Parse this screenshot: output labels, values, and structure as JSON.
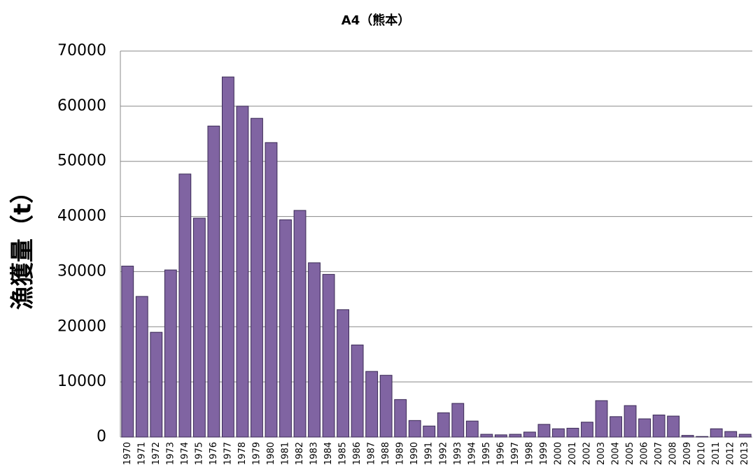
{
  "chart_data": {
    "type": "bar",
    "title": "A4（熊本）",
    "y_label": "漁獲量（t）",
    "categories": [
      "1970",
      "1971",
      "1972",
      "1973",
      "1974",
      "1975",
      "1976",
      "1977",
      "1978",
      "1979",
      "1980",
      "1981",
      "1982",
      "1983",
      "1984",
      "1985",
      "1986",
      "1987",
      "1988",
      "1989",
      "1990",
      "1991",
      "1992",
      "1993",
      "1994",
      "1995",
      "1996",
      "1997",
      "1998",
      "1999",
      "2000",
      "2001",
      "2002",
      "2003",
      "2004",
      "2005",
      "2006",
      "2007",
      "2008",
      "2009",
      "2010",
      "2011",
      "2012",
      "2013"
    ],
    "values": [
      31000,
      25500,
      19000,
      30300,
      47700,
      39700,
      56400,
      65300,
      60000,
      57800,
      53400,
      39400,
      41100,
      31600,
      29500,
      23100,
      16700,
      11900,
      11200,
      6800,
      3000,
      2000,
      4400,
      6100,
      2900,
      500,
      400,
      500,
      900,
      2300,
      1500,
      1600,
      2700,
      6600,
      3700,
      5700,
      3300,
      4000,
      3800,
      300,
      100,
      1500,
      1000,
      500
    ],
    "color": "#8064a2",
    "ylim": [
      0,
      70000
    ],
    "yticks": [
      0,
      10000,
      20000,
      30000,
      40000,
      50000,
      60000,
      70000
    ],
    "grid": true
  }
}
